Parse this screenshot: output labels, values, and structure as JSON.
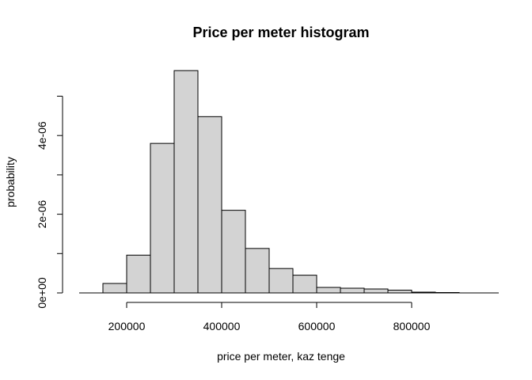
{
  "chart_data": {
    "type": "histogram",
    "title": "Price per meter histogram",
    "xlabel": "price per meter, kaz tenge",
    "ylabel": "probability",
    "bin_width": 50000,
    "bins": [
      {
        "start": 150000,
        "end": 200000,
        "density": 2.4e-07
      },
      {
        "start": 200000,
        "end": 250000,
        "density": 9.6e-07
      },
      {
        "start": 250000,
        "end": 300000,
        "density": 3.8e-06
      },
      {
        "start": 300000,
        "end": 350000,
        "density": 5.65e-06
      },
      {
        "start": 350000,
        "end": 400000,
        "density": 4.48e-06
      },
      {
        "start": 400000,
        "end": 450000,
        "density": 2.1e-06
      },
      {
        "start": 450000,
        "end": 500000,
        "density": 1.13e-06
      },
      {
        "start": 500000,
        "end": 550000,
        "density": 6.2e-07
      },
      {
        "start": 550000,
        "end": 600000,
        "density": 4.5e-07
      },
      {
        "start": 600000,
        "end": 650000,
        "density": 1.4e-07
      },
      {
        "start": 650000,
        "end": 700000,
        "density": 1.2e-07
      },
      {
        "start": 700000,
        "end": 750000,
        "density": 1e-07
      },
      {
        "start": 750000,
        "end": 800000,
        "density": 7e-08
      },
      {
        "start": 800000,
        "end": 850000,
        "density": 2e-08
      },
      {
        "start": 850000,
        "end": 900000,
        "density": 1e-08
      }
    ],
    "xlim": [
      100000,
      950000
    ],
    "ylim": [
      0,
      5e-06
    ],
    "x_ticks": [
      {
        "value": 200000,
        "label": "200000"
      },
      {
        "value": 400000,
        "label": "400000"
      },
      {
        "value": 600000,
        "label": "600000"
      },
      {
        "value": 800000,
        "label": "800000"
      }
    ],
    "y_ticks": [
      {
        "value": 0,
        "label": "0e+00"
      },
      {
        "value": 1e-06,
        "label": ""
      },
      {
        "value": 2e-06,
        "label": "2e-06"
      },
      {
        "value": 3e-06,
        "label": ""
      },
      {
        "value": 4e-06,
        "label": "4e-06"
      },
      {
        "value": 5e-06,
        "label": ""
      }
    ],
    "bar_fill": "#d3d3d3",
    "bar_stroke": "#000000",
    "grid": false
  }
}
